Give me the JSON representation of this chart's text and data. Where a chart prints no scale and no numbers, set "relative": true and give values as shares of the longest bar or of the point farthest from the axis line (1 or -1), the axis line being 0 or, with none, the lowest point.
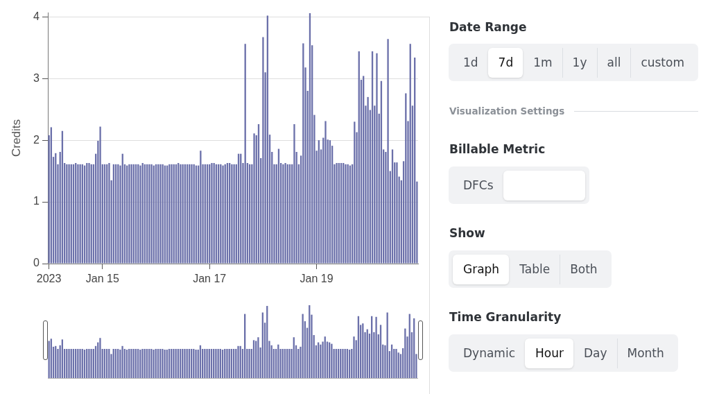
{
  "chart_data": [
    {
      "type": "bar",
      "ylabel": "Credits",
      "color": "#6b70aa",
      "grid": "y",
      "ylim": [
        0,
        4.07
      ],
      "yticks": [
        0,
        1,
        2,
        3,
        4
      ],
      "xlim": [
        "2023-01-13T23:30",
        "2023-01-20T21:30"
      ],
      "xticks": [
        {
          "value": "2023-01-14T00:00",
          "label": "2023"
        },
        {
          "value": "2023-01-15T00:00",
          "label": "Jan 15"
        },
        {
          "value": "2023-01-17T00:00",
          "label": "Jan 17"
        },
        {
          "value": "2023-01-19T00:00",
          "label": "Jan 19"
        }
      ],
      "x": [
        "2023-01-14T00:00",
        "2023-01-14T01:00",
        "2023-01-14T02:00",
        "2023-01-14T03:00",
        "2023-01-14T04:00",
        "2023-01-14T05:00",
        "2023-01-14T06:00",
        "2023-01-14T07:00",
        "2023-01-14T08:00",
        "2023-01-14T09:00",
        "2023-01-14T10:00",
        "2023-01-14T11:00",
        "2023-01-14T12:00",
        "2023-01-14T13:00",
        "2023-01-14T14:00",
        "2023-01-14T15:00",
        "2023-01-14T16:00",
        "2023-01-14T17:00",
        "2023-01-14T18:00",
        "2023-01-14T19:00",
        "2023-01-14T20:00",
        "2023-01-14T21:00",
        "2023-01-14T22:00",
        "2023-01-14T23:00",
        "2023-01-15T00:00",
        "2023-01-15T01:00",
        "2023-01-15T02:00",
        "2023-01-15T03:00",
        "2023-01-15T04:00",
        "2023-01-15T05:00",
        "2023-01-15T06:00",
        "2023-01-15T07:00",
        "2023-01-15T08:00",
        "2023-01-15T09:00",
        "2023-01-15T10:00",
        "2023-01-15T11:00",
        "2023-01-15T12:00",
        "2023-01-15T13:00",
        "2023-01-15T14:00",
        "2023-01-15T15:00",
        "2023-01-15T16:00",
        "2023-01-15T17:00",
        "2023-01-15T18:00",
        "2023-01-15T19:00",
        "2023-01-15T20:00",
        "2023-01-15T21:00",
        "2023-01-15T22:00",
        "2023-01-15T23:00",
        "2023-01-16T00:00",
        "2023-01-16T01:00",
        "2023-01-16T02:00",
        "2023-01-16T03:00",
        "2023-01-16T04:00",
        "2023-01-16T05:00",
        "2023-01-16T06:00",
        "2023-01-16T07:00",
        "2023-01-16T08:00",
        "2023-01-16T09:00",
        "2023-01-16T10:00",
        "2023-01-16T11:00",
        "2023-01-16T12:00",
        "2023-01-16T13:00",
        "2023-01-16T14:00",
        "2023-01-16T15:00",
        "2023-01-16T16:00",
        "2023-01-16T17:00",
        "2023-01-16T18:00",
        "2023-01-16T19:00",
        "2023-01-16T20:00",
        "2023-01-16T21:00",
        "2023-01-16T22:00",
        "2023-01-16T23:00",
        "2023-01-17T00:00",
        "2023-01-17T01:00",
        "2023-01-17T02:00",
        "2023-01-17T03:00",
        "2023-01-17T04:00",
        "2023-01-17T05:00",
        "2023-01-17T06:00",
        "2023-01-17T07:00",
        "2023-01-17T08:00",
        "2023-01-17T09:00",
        "2023-01-17T10:00",
        "2023-01-17T11:00",
        "2023-01-17T12:00",
        "2023-01-17T13:00",
        "2023-01-17T14:00",
        "2023-01-17T15:00",
        "2023-01-17T16:00",
        "2023-01-17T17:00",
        "2023-01-17T18:00",
        "2023-01-17T19:00",
        "2023-01-17T20:00",
        "2023-01-17T21:00",
        "2023-01-17T22:00",
        "2023-01-17T23:00",
        "2023-01-18T00:00",
        "2023-01-18T01:00",
        "2023-01-18T02:00",
        "2023-01-18T03:00",
        "2023-01-18T04:00",
        "2023-01-18T05:00",
        "2023-01-18T06:00",
        "2023-01-18T07:00",
        "2023-01-18T08:00",
        "2023-01-18T09:00",
        "2023-01-18T10:00",
        "2023-01-18T11:00",
        "2023-01-18T12:00",
        "2023-01-18T13:00",
        "2023-01-18T14:00",
        "2023-01-18T15:00",
        "2023-01-18T16:00",
        "2023-01-18T17:00",
        "2023-01-18T18:00",
        "2023-01-18T19:00",
        "2023-01-18T20:00",
        "2023-01-18T21:00",
        "2023-01-18T22:00",
        "2023-01-18T23:00",
        "2023-01-19T00:00",
        "2023-01-19T01:00",
        "2023-01-19T02:00",
        "2023-01-19T03:00",
        "2023-01-19T04:00",
        "2023-01-19T05:00",
        "2023-01-19T06:00",
        "2023-01-19T07:00",
        "2023-01-19T08:00",
        "2023-01-19T09:00",
        "2023-01-19T10:00",
        "2023-01-19T11:00",
        "2023-01-19T12:00",
        "2023-01-19T13:00",
        "2023-01-19T14:00",
        "2023-01-19T15:00",
        "2023-01-19T16:00",
        "2023-01-19T17:00",
        "2023-01-19T18:00",
        "2023-01-19T19:00",
        "2023-01-19T20:00",
        "2023-01-19T21:00",
        "2023-01-19T22:00",
        "2023-01-19T23:00",
        "2023-01-20T00:00",
        "2023-01-20T01:00",
        "2023-01-20T02:00",
        "2023-01-20T03:00",
        "2023-01-20T04:00",
        "2023-01-20T05:00",
        "2023-01-20T06:00",
        "2023-01-20T07:00",
        "2023-01-20T08:00",
        "2023-01-20T09:00",
        "2023-01-20T10:00",
        "2023-01-20T11:00",
        "2023-01-20T12:00",
        "2023-01-20T13:00",
        "2023-01-20T14:00",
        "2023-01-20T15:00",
        "2023-01-20T16:00",
        "2023-01-20T17:00",
        "2023-01-20T18:00",
        "2023-01-20T19:00",
        "2023-01-20T20:00",
        "2023-01-20T21:00"
      ],
      "values": [
        2.08,
        2.21,
        1.73,
        1.79,
        1.61,
        1.81,
        2.15,
        1.63,
        1.61,
        1.61,
        1.61,
        1.61,
        1.63,
        1.61,
        1.61,
        1.61,
        1.59,
        1.63,
        1.63,
        1.61,
        1.61,
        1.78,
        1.99,
        2.22,
        1.61,
        1.61,
        1.61,
        1.63,
        1.35,
        1.61,
        1.61,
        1.61,
        1.59,
        1.78,
        1.61,
        1.59,
        1.61,
        1.61,
        1.61,
        1.61,
        1.61,
        1.59,
        1.63,
        1.61,
        1.61,
        1.61,
        1.61,
        1.59,
        1.61,
        1.61,
        1.61,
        1.61,
        1.59,
        1.59,
        1.61,
        1.61,
        1.61,
        1.61,
        1.63,
        1.61,
        1.61,
        1.61,
        1.61,
        1.61,
        1.61,
        1.61,
        1.59,
        1.59,
        1.83,
        1.61,
        1.61,
        1.61,
        1.61,
        1.63,
        1.63,
        1.61,
        1.61,
        1.61,
        1.59,
        1.61,
        1.63,
        1.63,
        1.61,
        1.61,
        1.61,
        1.78,
        1.78,
        1.63,
        3.56,
        1.63,
        1.61,
        1.61,
        2.11,
        2.08,
        2.26,
        1.71,
        3.67,
        3.1,
        4.02,
        2.09,
        1.81,
        1.61,
        1.61,
        1.86,
        1.63,
        1.61,
        1.63,
        1.61,
        1.61,
        1.61,
        2.26,
        1.81,
        1.61,
        1.75,
        3.57,
        3.18,
        2.8,
        4.06,
        3.54,
        2.41,
        1.83,
        2,
        1.85,
        2.04,
        2.31,
        2.01,
        2,
        1.91,
        1.61,
        1.63,
        1.63,
        1.63,
        1.63,
        1.61,
        1.61,
        1.59,
        1.61,
        2.3,
        2.13,
        3.44,
        2.98,
        3.04,
        2.56,
        2.7,
        2.49,
        3.44,
        2.56,
        3.41,
        2.43,
        2.96,
        1.85,
        1.81,
        3.64,
        1.5,
        1.85,
        1.64,
        1.64,
        1.41,
        1.35,
        1.66,
        2.76,
        2.31,
        3.56,
        2.56,
        3.34,
        1.33
      ]
    },
    {
      "type": "bar",
      "relative": true,
      "color": "#6b70aa",
      "categories": [
        null,
        null,
        null,
        null,
        null,
        null,
        null,
        null,
        null,
        null,
        null,
        null,
        null,
        null,
        null,
        null,
        null,
        null,
        null,
        null,
        null,
        null,
        null,
        null,
        null,
        null,
        null,
        null,
        null,
        null,
        null,
        null,
        null,
        null,
        null,
        null,
        null,
        null,
        null,
        null,
        null,
        null,
        null,
        null,
        null,
        null,
        null,
        null,
        null,
        null,
        null,
        null,
        null,
        null,
        null,
        null,
        null,
        null,
        null,
        null,
        null,
        null,
        null,
        null,
        null,
        null,
        null,
        null,
        null,
        null,
        null,
        null,
        null,
        null,
        null,
        null,
        null,
        null,
        null,
        null,
        null,
        null,
        null,
        null,
        null,
        null,
        null,
        null,
        null,
        null,
        null,
        null,
        null,
        null,
        null,
        null,
        null,
        null,
        null,
        null,
        null,
        null,
        null,
        null,
        null,
        null,
        null,
        null,
        null,
        null,
        null,
        null,
        null,
        null,
        null,
        null,
        null,
        null,
        null,
        null,
        null,
        null,
        null,
        null,
        null,
        null,
        null,
        null,
        null,
        null,
        null,
        null,
        null,
        null,
        null,
        null,
        null,
        null,
        null,
        null,
        null,
        null,
        null,
        null,
        null,
        null,
        null,
        null,
        null,
        null,
        null,
        null,
        null,
        null,
        null,
        null,
        null,
        null,
        null,
        null,
        null,
        null,
        null,
        null,
        null,
        null
      ],
      "values": [
        0.51,
        0.54,
        0.43,
        0.44,
        0.4,
        0.45,
        0.53,
        0.4,
        0.4,
        0.4,
        0.4,
        0.4,
        0.4,
        0.4,
        0.4,
        0.4,
        0.39,
        0.4,
        0.4,
        0.4,
        0.4,
        0.44,
        0.49,
        0.55,
        0.4,
        0.4,
        0.4,
        0.4,
        0.33,
        0.4,
        0.4,
        0.4,
        0.39,
        0.44,
        0.4,
        0.39,
        0.4,
        0.4,
        0.4,
        0.4,
        0.4,
        0.39,
        0.4,
        0.4,
        0.4,
        0.4,
        0.4,
        0.39,
        0.4,
        0.4,
        0.4,
        0.4,
        0.39,
        0.39,
        0.4,
        0.4,
        0.4,
        0.4,
        0.4,
        0.4,
        0.4,
        0.4,
        0.4,
        0.4,
        0.4,
        0.4,
        0.39,
        0.39,
        0.45,
        0.4,
        0.4,
        0.4,
        0.4,
        0.4,
        0.4,
        0.4,
        0.4,
        0.4,
        0.39,
        0.4,
        0.4,
        0.4,
        0.4,
        0.4,
        0.4,
        0.44,
        0.44,
        0.4,
        0.88,
        0.4,
        0.4,
        0.4,
        0.52,
        0.51,
        0.56,
        0.42,
        0.9,
        0.76,
        0.99,
        0.51,
        0.45,
        0.4,
        0.4,
        0.46,
        0.4,
        0.4,
        0.4,
        0.4,
        0.4,
        0.4,
        0.56,
        0.45,
        0.4,
        0.43,
        0.88,
        0.78,
        0.69,
        1,
        0.87,
        0.59,
        0.45,
        0.49,
        0.46,
        0.5,
        0.57,
        0.5,
        0.49,
        0.47,
        0.4,
        0.4,
        0.4,
        0.4,
        0.4,
        0.4,
        0.4,
        0.39,
        0.4,
        0.57,
        0.52,
        0.85,
        0.73,
        0.75,
        0.63,
        0.67,
        0.61,
        0.85,
        0.63,
        0.84,
        0.6,
        0.73,
        0.46,
        0.45,
        0.9,
        0.37,
        0.46,
        0.4,
        0.4,
        0.35,
        0.33,
        0.41,
        0.68,
        0.57,
        0.88,
        0.63,
        0.82,
        0.33
      ]
    },
    {
      "type": "other",
      "annotations": [
        "Date Range",
        "1d",
        "7d",
        "1m",
        "1y",
        "all",
        "custom",
        "Visualization Settings",
        "Billable Metric",
        "DFCs",
        "Show",
        "Graph",
        "Table",
        "Both",
        "Time Granularity",
        "Dynamic",
        "Hour",
        "Day",
        "Month"
      ]
    }
  ]
}
